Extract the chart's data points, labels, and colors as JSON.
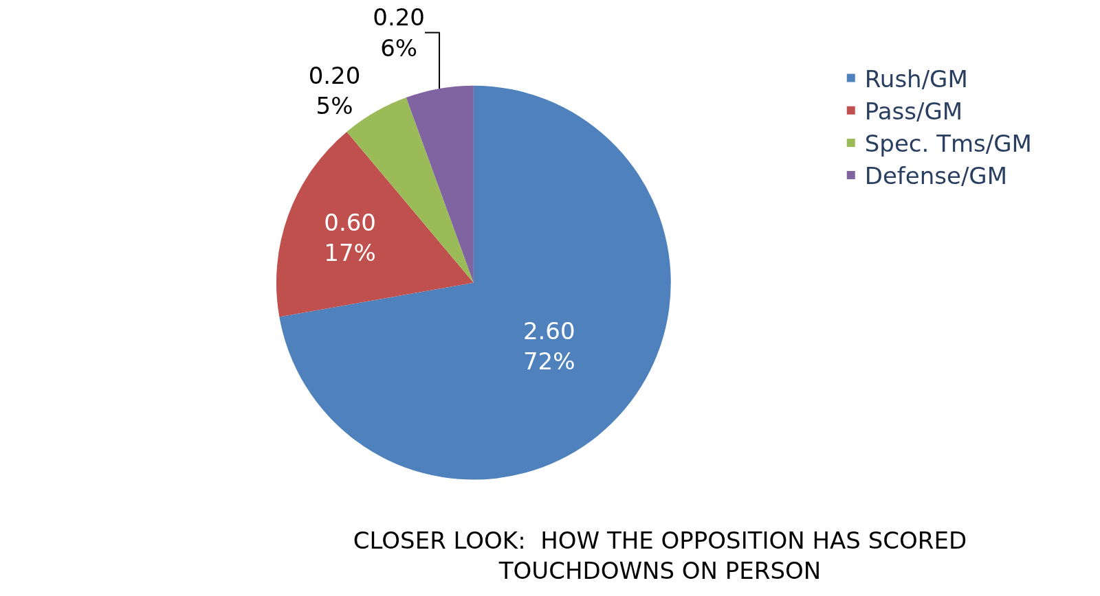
{
  "chart_data": {
    "type": "pie",
    "title": "CLOSER LOOK:  HOW THE OPPOSITION HAS SCORED\nTOUCHDOWNS ON PERSON",
    "categories": [
      "Rush/GM",
      "Pass/GM",
      "Spec. Tms/GM",
      "Defense/GM"
    ],
    "values": [
      2.6,
      0.6,
      0.2,
      0.2
    ],
    "value_labels": [
      "2.60\n72%",
      "0.60\n17%",
      "0.20\n5%",
      "0.20\n6%"
    ],
    "colors": [
      "#4f81bd",
      "#c0504d",
      "#9bbb59",
      "#8064a2"
    ],
    "legend": "top right"
  }
}
